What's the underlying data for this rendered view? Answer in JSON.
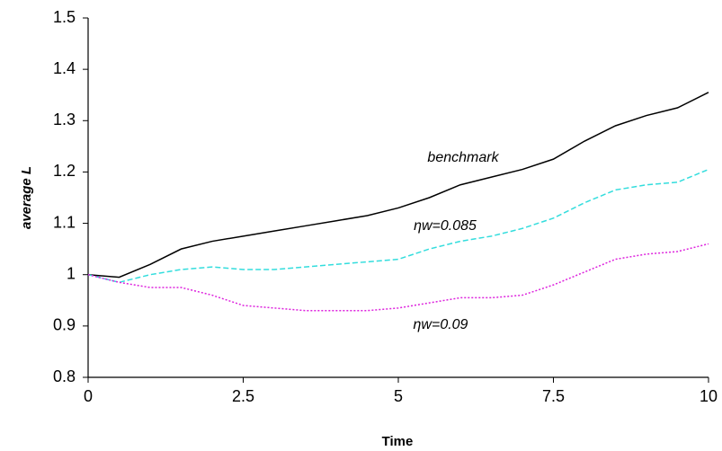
{
  "chart_data": {
    "type": "line",
    "x_label": "Time",
    "y_label": "average L",
    "x": [
      0,
      0.5,
      1,
      1.5,
      2,
      2.5,
      3,
      3.5,
      4,
      4.5,
      5,
      5.5,
      6,
      6.5,
      7,
      7.5,
      8,
      8.5,
      9,
      9.5,
      10
    ],
    "series": [
      {
        "name": "benchmark",
        "color": "#000000",
        "dash": "solid",
        "values": [
          1.0,
          0.995,
          1.02,
          1.05,
          1.065,
          1.075,
          1.085,
          1.095,
          1.105,
          1.115,
          1.13,
          1.15,
          1.175,
          1.19,
          1.205,
          1.225,
          1.26,
          1.29,
          1.31,
          1.325,
          1.355
        ]
      },
      {
        "name": "ηw=0.085",
        "color": "#33dddd",
        "dash": "dashed",
        "values": [
          1.0,
          0.985,
          1.0,
          1.01,
          1.015,
          1.01,
          1.01,
          1.015,
          1.02,
          1.025,
          1.03,
          1.05,
          1.065,
          1.075,
          1.09,
          1.11,
          1.14,
          1.165,
          1.175,
          1.18,
          1.205
        ]
      },
      {
        "name": "ηw=0.09",
        "color": "#dd22dd",
        "dash": "dotted",
        "values": [
          1.0,
          0.985,
          0.975,
          0.975,
          0.96,
          0.94,
          0.935,
          0.93,
          0.93,
          0.93,
          0.935,
          0.945,
          0.955,
          0.955,
          0.96,
          0.98,
          1.005,
          1.03,
          1.04,
          1.045,
          1.06
        ]
      }
    ],
    "xlim": [
      0,
      10
    ],
    "xticks": [
      0,
      2.5,
      5,
      7.5,
      10
    ],
    "ylim": [
      0.8,
      1.5
    ],
    "yticks": [
      0.8,
      0.9,
      1,
      1.1,
      1.2,
      1.3,
      1.4,
      1.5
    ],
    "grid": false
  }
}
